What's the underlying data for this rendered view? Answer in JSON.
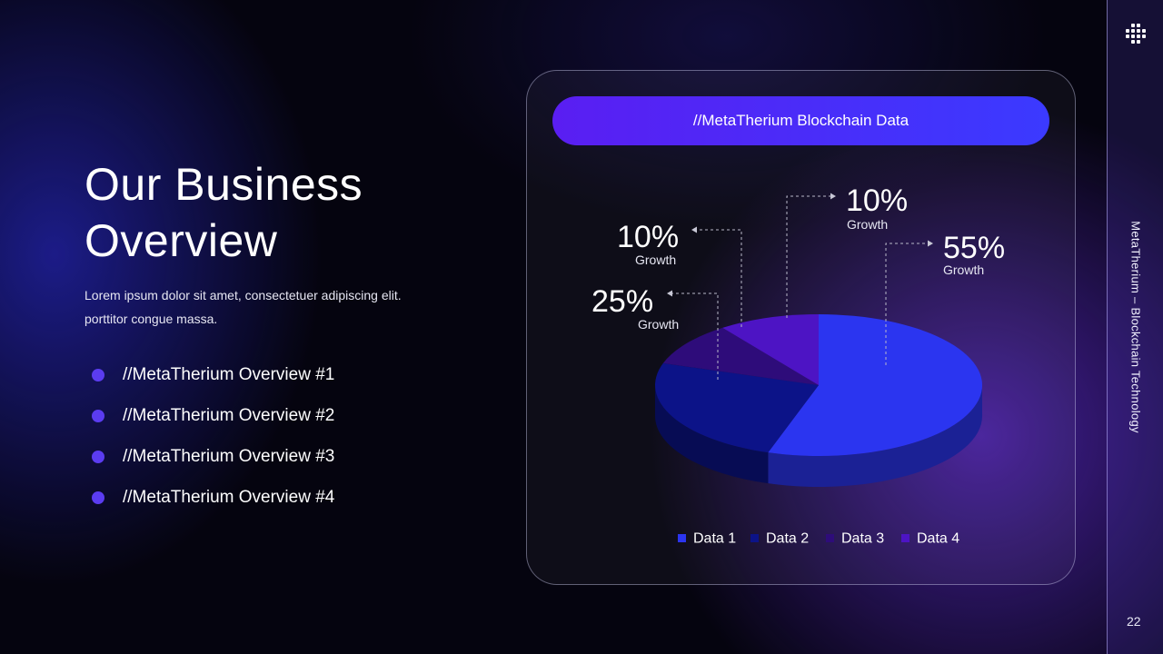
{
  "slide": {
    "title_lines": [
      "Our Business",
      "Overview"
    ],
    "description_lines": [
      "Lorem ipsum dolor sit amet, consectetuer adipiscing elit.",
      "porttitor congue massa."
    ],
    "bullets": [
      "//MetaTherium Overview #1",
      "//MetaTherium Overview #2",
      "//MetaTherium Overview #3",
      "//MetaTherium Overview #4"
    ],
    "bullet_color": "#5b3cf0"
  },
  "card": {
    "header": "//MetaTherium Blockchain Data"
  },
  "sidebar": {
    "vertical_text": "MetaTherium – Blockchain Technology",
    "page_number": "22",
    "logo_icon": "grid-logo-icon"
  },
  "chart_data": {
    "type": "pie",
    "style": "3d",
    "categories": [
      "Data 1",
      "Data 2",
      "Data 3",
      "Data 4"
    ],
    "values": [
      55,
      25,
      10,
      10
    ],
    "colors": [
      "#2b35f0",
      "#0c1388",
      "#2e0c7a",
      "#4d14c4"
    ],
    "annotations": [
      {
        "value": "55%",
        "label": "Growth",
        "category": "Data 1"
      },
      {
        "value": "25%",
        "label": "Growth",
        "category": "Data 2"
      },
      {
        "value": "10%",
        "label": "Growth",
        "category": "Data 3"
      },
      {
        "value": "10%",
        "label": "Growth",
        "category": "Data 4"
      }
    ],
    "legend": "bottom"
  }
}
